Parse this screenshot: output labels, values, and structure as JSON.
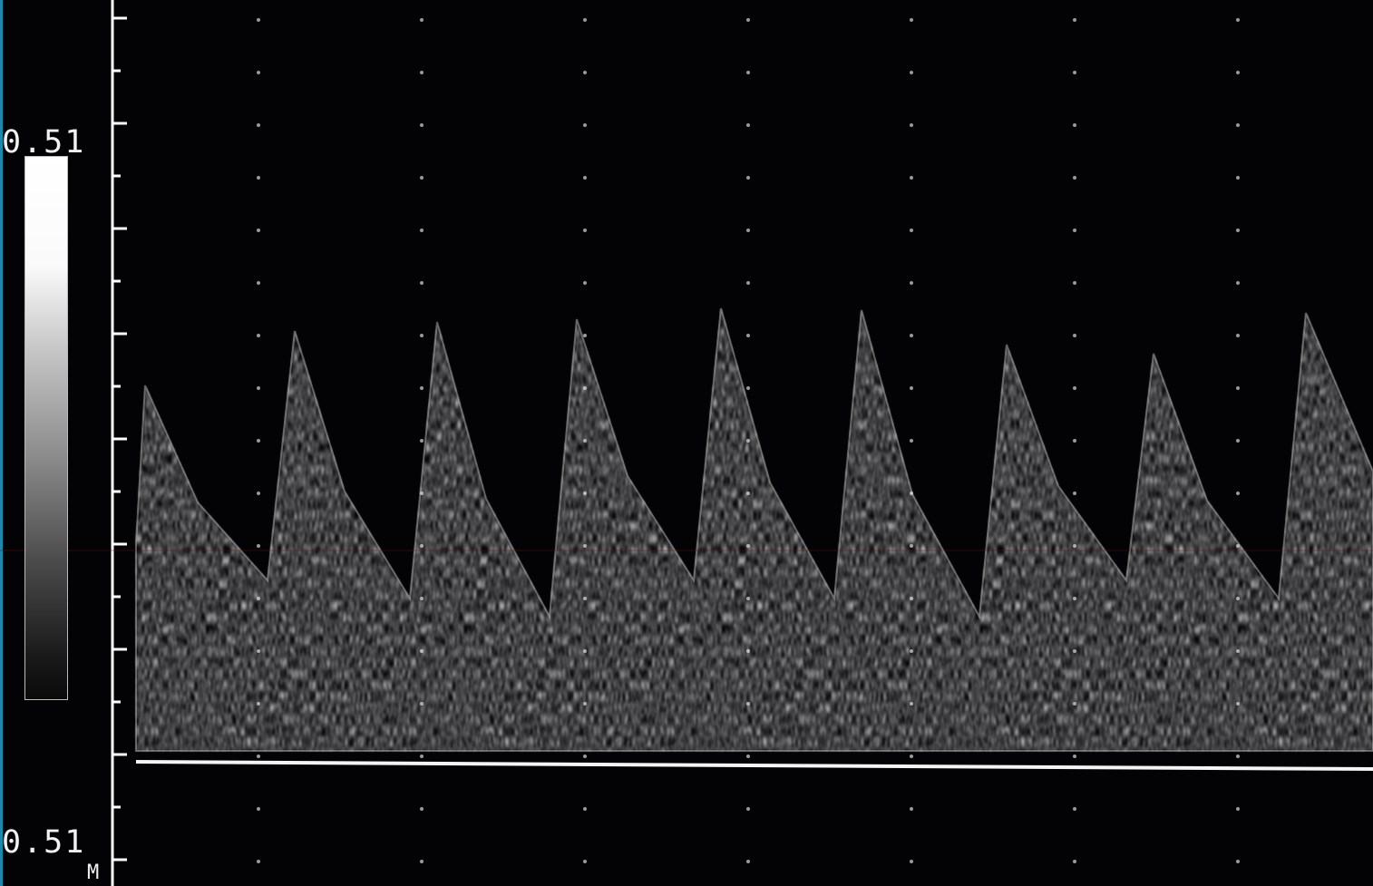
{
  "scale": {
    "top_label": "0.51",
    "bottom_label": "0.51",
    "marker": "M"
  },
  "colors": {
    "background": "#030305",
    "waveform": "#f0f0f0",
    "axis": "#ffffff",
    "edge": "#1d88a8"
  }
}
